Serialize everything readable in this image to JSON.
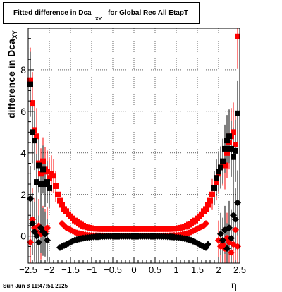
{
  "title": {
    "main": "Fitted difference in Dca",
    "sub": "XY",
    "rest": "for Global Rec All EtapT"
  },
  "footer": "Sun Jun  8 11:47:51 2025",
  "colors": {
    "red": "#ff0000",
    "black": "#000000",
    "grid": "#000000"
  },
  "chart_data": {
    "type": "scatter",
    "xlabel": "η",
    "ylabel": "difference in Dca",
    "ylabel_sub": "XY",
    "xlim": [
      -2.5,
      2.5
    ],
    "ylim": [
      -1.3,
      10.0
    ],
    "grid": true,
    "x_ticks": [
      -2.5,
      -2,
      -1.5,
      -1,
      -0.5,
      0,
      0.5,
      1,
      1.5,
      2,
      2.5
    ],
    "x_tick_labels": [
      "−2.5",
      "−2",
      "−1.5",
      "−1",
      "−0.5",
      "0",
      "0.5",
      "1",
      "1.5",
      "2",
      "2.5"
    ],
    "y_ticks": [
      0,
      2,
      4,
      6,
      8
    ],
    "y_tick_labels": [
      "0",
      "2",
      "4",
      "6",
      "8"
    ],
    "series": [
      {
        "color": "#ff0000",
        "marker": "square",
        "x": [
          -2.45,
          -2.4,
          -2.35,
          -2.3,
          -2.25,
          -2.2,
          -2.15,
          -2.1,
          -2.05,
          -2.0,
          -1.95,
          -1.9,
          -1.85,
          -1.8,
          -1.75,
          -1.7,
          -1.65,
          -1.6,
          -1.55,
          -1.5,
          -1.45,
          -1.4,
          -1.35,
          -1.3,
          -1.25,
          -1.2,
          -1.15,
          -1.1,
          -1.05,
          -1.0,
          -0.95,
          -0.9,
          -0.85,
          -0.8,
          -0.75,
          -0.7,
          -0.65,
          -0.6,
          -0.55,
          -0.5,
          -0.45,
          -0.4,
          -0.35,
          -0.3,
          -0.25,
          -0.2,
          -0.15,
          -0.1,
          -0.05,
          0.0,
          0.05,
          0.1,
          0.15,
          0.2,
          0.25,
          0.3,
          0.35,
          0.4,
          0.45,
          0.5,
          0.55,
          0.6,
          0.65,
          0.7,
          0.75,
          0.8,
          0.85,
          0.9,
          0.95,
          1.0,
          1.05,
          1.1,
          1.15,
          1.2,
          1.25,
          1.3,
          1.35,
          1.4,
          1.45,
          1.5,
          1.55,
          1.6,
          1.65,
          1.7,
          1.75,
          1.8,
          1.85,
          1.9,
          1.95,
          2.0,
          2.05,
          2.1,
          2.15,
          2.2,
          2.25,
          2.3,
          2.35,
          2.4,
          2.45
        ],
        "y": [
          7.5,
          6.4,
          5.1,
          4.8,
          3.5,
          3.0,
          3.6,
          3.2,
          3.1,
          2.8,
          3.0,
          2.9,
          2.4,
          2.0,
          1.7,
          1.5,
          1.3,
          1.2,
          1.05,
          0.95,
          0.85,
          0.75,
          0.68,
          0.62,
          0.55,
          0.5,
          0.45,
          0.42,
          0.4,
          0.38,
          0.36,
          0.35,
          0.35,
          0.34,
          0.34,
          0.34,
          0.34,
          0.34,
          0.34,
          0.34,
          0.34,
          0.34,
          0.34,
          0.34,
          0.34,
          0.34,
          0.34,
          0.34,
          0.34,
          0.34,
          0.34,
          0.34,
          0.34,
          0.34,
          0.34,
          0.34,
          0.34,
          0.34,
          0.34,
          0.34,
          0.34,
          0.34,
          0.34,
          0.34,
          0.34,
          0.34,
          0.34,
          0.35,
          0.35,
          0.36,
          0.38,
          0.4,
          0.42,
          0.45,
          0.5,
          0.55,
          0.6,
          0.68,
          0.75,
          0.85,
          0.95,
          1.05,
          1.2,
          1.3,
          1.5,
          1.7,
          2.0,
          2.3,
          2.6,
          3.0,
          3.3,
          3.5,
          3.4,
          4.0,
          4.5,
          4.8,
          5.0,
          4.4,
          9.6
        ]
      },
      {
        "color": "#ff0000",
        "marker": "diamond",
        "x": [
          -2.45,
          -2.4,
          -2.35,
          -2.3,
          -2.25,
          -2.2,
          -2.15,
          -2.1,
          -2.05,
          -1.7,
          -1.65,
          -1.6,
          -1.55,
          -1.5,
          -1.45,
          -1.4,
          -1.35,
          -1.3,
          -1.25,
          -1.2,
          -1.15,
          -1.1,
          -1.05,
          -1.0,
          -0.95,
          -0.9,
          -0.85,
          -0.8,
          -0.75,
          -0.7,
          -0.65,
          -0.6,
          -0.55,
          -0.5,
          -0.45,
          -0.4,
          -0.35,
          -0.3,
          -0.25,
          -0.2,
          -0.15,
          -0.1,
          -0.05,
          0.0,
          0.05,
          0.1,
          0.15,
          0.2,
          0.25,
          0.3,
          0.35,
          0.4,
          0.45,
          0.5,
          0.55,
          0.6,
          0.65,
          0.7,
          0.75,
          0.8,
          0.85,
          0.9,
          0.95,
          1.0,
          1.05,
          1.1,
          1.15,
          1.2,
          1.25,
          1.3,
          1.35,
          1.4,
          1.45,
          1.5,
          1.55,
          1.6,
          1.65,
          1.7,
          2.0,
          2.05,
          2.1,
          2.15,
          2.2,
          2.25,
          2.3,
          2.35,
          2.4,
          2.45
        ],
        "y": [
          -0.3,
          0.8,
          0.4,
          0.2,
          0.5,
          0.1,
          0.3,
          0.2,
          0.4,
          0.6,
          0.5,
          0.4,
          0.35,
          0.3,
          0.25,
          0.2,
          0.15,
          0.12,
          0.1,
          0.08,
          0.06,
          0.05,
          0.04,
          0.03,
          0.02,
          0.02,
          0.01,
          0.01,
          0.01,
          0.0,
          0.0,
          0.0,
          0.0,
          0.0,
          0.0,
          0.0,
          0.0,
          0.0,
          0.0,
          0.0,
          0.0,
          0.0,
          0.0,
          0.0,
          0.0,
          0.0,
          0.0,
          0.0,
          0.0,
          0.0,
          0.0,
          0.0,
          0.0,
          0.0,
          0.0,
          0.0,
          0.0,
          0.01,
          0.01,
          0.01,
          0.02,
          0.02,
          0.03,
          0.04,
          0.05,
          0.06,
          0.08,
          0.1,
          0.12,
          0.15,
          0.2,
          0.25,
          0.3,
          0.35,
          0.4,
          0.45,
          0.5,
          0.6,
          -0.2,
          -0.5,
          -0.4,
          -0.6,
          -0.1,
          -0.3,
          -0.8,
          -0.4,
          0.3,
          -0.5
        ]
      },
      {
        "color": "#000000",
        "marker": "square",
        "x": [
          -2.45,
          -2.4,
          -2.35,
          -2.3,
          -2.25,
          -2.2,
          -2.15,
          -2.1,
          -2.05,
          -2.0,
          1.9,
          1.95,
          2.0,
          2.05,
          2.1,
          2.15,
          2.2,
          2.25,
          2.3,
          2.35,
          2.4,
          2.45
        ],
        "y": [
          7.3,
          5.0,
          4.6,
          2.6,
          3.4,
          2.5,
          3.2,
          2.5,
          2.6,
          2.3,
          2.3,
          2.8,
          3.1,
          3.3,
          3.6,
          4.2,
          4.6,
          4.8,
          4.2,
          3.8,
          4.1,
          5.9
        ]
      },
      {
        "color": "#000000",
        "marker": "diamond",
        "x": [
          -2.45,
          -2.4,
          -2.35,
          -2.3,
          -2.25,
          -2.2,
          -2.15,
          -2.1,
          -2.05,
          -1.75,
          -1.7,
          -1.65,
          -1.6,
          -1.55,
          -1.5,
          -1.45,
          -1.4,
          -1.35,
          -1.3,
          -1.25,
          -1.2,
          -1.15,
          -1.1,
          -1.05,
          -1.0,
          -0.95,
          -0.9,
          -0.85,
          -0.8,
          -0.75,
          -0.7,
          -0.65,
          -0.6,
          -0.55,
          -0.5,
          -0.45,
          -0.4,
          -0.35,
          -0.3,
          -0.25,
          -0.2,
          -0.15,
          -0.1,
          -0.05,
          0.0,
          0.05,
          0.1,
          0.15,
          0.2,
          0.25,
          0.3,
          0.35,
          0.4,
          0.45,
          0.5,
          0.55,
          0.6,
          0.65,
          0.7,
          0.75,
          0.8,
          0.85,
          0.9,
          0.95,
          1.0,
          1.05,
          1.1,
          1.15,
          1.2,
          1.25,
          1.3,
          1.35,
          1.4,
          1.45,
          1.5,
          1.55,
          1.6,
          1.65,
          1.7,
          1.75,
          2.05,
          2.1,
          2.15,
          2.2,
          2.25,
          2.3,
          2.35,
          2.4,
          2.45
        ],
        "y": [
          1.8,
          0.6,
          0.2,
          0.0,
          -0.3,
          0.4,
          0.2,
          0.1,
          -0.2,
          -0.55,
          -0.5,
          -0.45,
          -0.4,
          -0.35,
          -0.3,
          -0.25,
          -0.2,
          -0.17,
          -0.14,
          -0.12,
          -0.1,
          -0.08,
          -0.07,
          -0.06,
          -0.05,
          -0.04,
          -0.03,
          -0.03,
          -0.02,
          -0.02,
          -0.02,
          -0.01,
          -0.01,
          -0.01,
          -0.01,
          -0.01,
          -0.01,
          -0.01,
          -0.01,
          -0.01,
          -0.01,
          -0.01,
          -0.01,
          -0.01,
          -0.01,
          -0.01,
          -0.01,
          -0.01,
          -0.01,
          -0.01,
          -0.01,
          -0.01,
          -0.01,
          -0.01,
          -0.01,
          -0.01,
          -0.01,
          -0.02,
          -0.02,
          -0.02,
          -0.03,
          -0.03,
          -0.04,
          -0.05,
          -0.06,
          -0.07,
          -0.08,
          -0.1,
          -0.12,
          -0.14,
          -0.17,
          -0.2,
          -0.25,
          -0.3,
          -0.35,
          -0.4,
          -0.45,
          -0.5,
          -0.55,
          -0.4,
          0.1,
          -0.2,
          0.3,
          -0.6,
          0.4,
          -0.1,
          1.0,
          0.8,
          1.6
        ]
      }
    ]
  }
}
